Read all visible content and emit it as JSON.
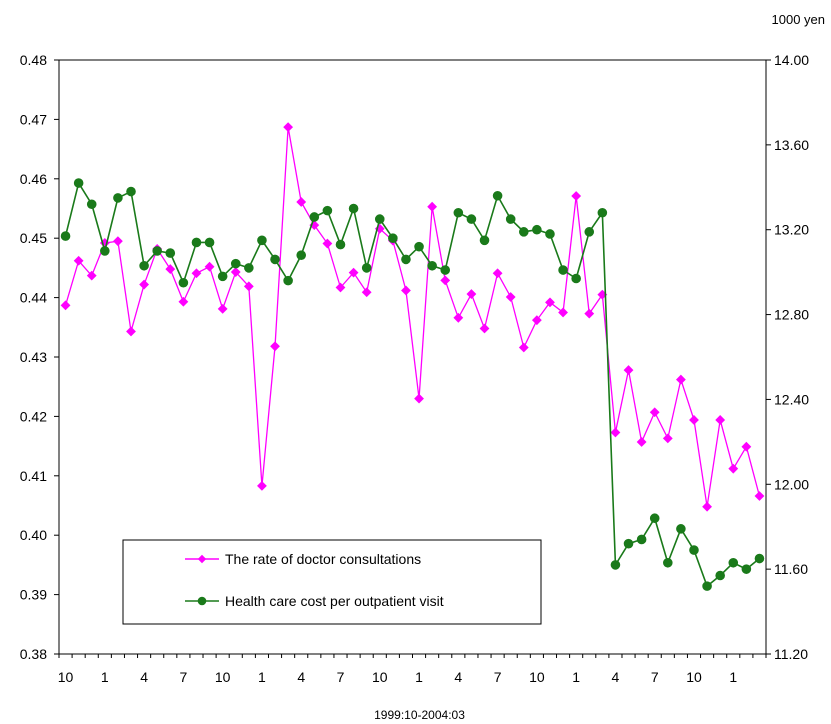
{
  "chart_data": {
    "type": "line",
    "title": "",
    "xlabel": "1999:10-2004:03",
    "y_right_unit": "1000 yen",
    "x_tick_labels": [
      "10",
      "1",
      "4",
      "7",
      "10",
      "1",
      "4",
      "7",
      "10",
      "1",
      "4",
      "7",
      "10",
      "1",
      "4",
      "7",
      "10",
      "1"
    ],
    "x_tick_start_index": 0,
    "x_tick_step": 3,
    "y_left_ticks": [
      "0.48",
      "0.47",
      "0.46",
      "0.45",
      "0.44",
      "0.43",
      "0.42",
      "0.41",
      "0.40",
      "0.39",
      "0.38"
    ],
    "y_right_ticks": [
      "14.00",
      "13.60",
      "13.20",
      "12.80",
      "12.40",
      "12.00",
      "11.60",
      "11.20"
    ],
    "ylim_left": [
      0.38,
      0.48
    ],
    "ylim_right": [
      11.2,
      14.0
    ],
    "grid": false,
    "legend_position": "lower-left",
    "series": [
      {
        "name": "The rate of doctor consultations",
        "axis": "left",
        "color": "#ff00ff",
        "marker": "diamond",
        "values": [
          0.4387,
          0.4462,
          0.4437,
          0.4492,
          0.4495,
          0.4343,
          0.4422,
          0.4482,
          0.4448,
          0.4393,
          0.4441,
          0.4452,
          0.4381,
          0.4443,
          0.4419,
          0.4083,
          0.4318,
          0.4687,
          0.4561,
          0.4522,
          0.4491,
          0.4417,
          0.4442,
          0.4409,
          0.4516,
          0.4496,
          0.4412,
          0.423,
          0.4553,
          0.4429,
          0.4366,
          0.4406,
          0.4348,
          0.4441,
          0.4401,
          0.4316,
          0.4362,
          0.4392,
          0.4375,
          0.4571,
          0.4373,
          0.4405,
          0.4173,
          0.4278,
          0.4157,
          0.4207,
          0.4163,
          0.4262,
          0.4194,
          0.4048,
          0.4194,
          0.4112,
          0.4149,
          0.4066
        ]
      },
      {
        "name": "Health care cost per outpatient visit",
        "axis": "right",
        "color": "#1a7a1a",
        "marker": "circle",
        "values": [
          13.17,
          13.42,
          13.32,
          13.1,
          13.35,
          13.38,
          13.03,
          13.1,
          13.09,
          12.95,
          13.14,
          13.14,
          12.98,
          13.04,
          13.02,
          13.15,
          13.06,
          12.96,
          13.08,
          13.26,
          13.29,
          13.13,
          13.3,
          13.02,
          13.25,
          13.16,
          13.06,
          13.12,
          13.03,
          13.01,
          13.28,
          13.25,
          13.15,
          13.36,
          13.25,
          13.19,
          13.2,
          13.18,
          13.01,
          12.97,
          13.19,
          13.28,
          11.62,
          11.72,
          11.74,
          11.84,
          11.63,
          11.79,
          11.69,
          11.52,
          11.57,
          11.63,
          11.6,
          11.65
        ]
      }
    ]
  }
}
